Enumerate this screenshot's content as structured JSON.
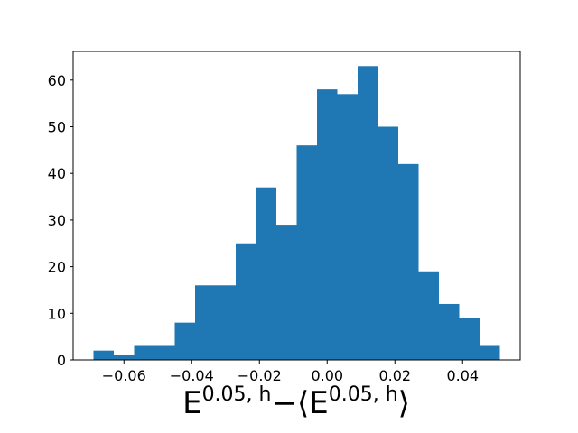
{
  "chart_data": {
    "type": "histogram",
    "xlabel": [
      "E",
      "0.05, h",
      "−⟨E",
      "0.05, h",
      "⟩"
    ],
    "bins": [
      -0.069,
      -0.063,
      -0.057,
      -0.051,
      -0.045,
      -0.039,
      -0.033,
      -0.027,
      -0.021,
      -0.015,
      -0.009,
      -0.003,
      0.003,
      0.009,
      0.015,
      0.021,
      0.027,
      0.033,
      0.039,
      0.045,
      0.051
    ],
    "values": [
      2,
      1,
      3,
      3,
      8,
      16,
      16,
      25,
      37,
      29,
      46,
      58,
      57,
      63,
      50,
      42,
      19,
      12,
      9,
      3
    ],
    "color": "#1f77b4",
    "xlim": [
      -0.075,
      0.057
    ],
    "ylim": [
      0,
      66.15
    ],
    "xticks": [
      {
        "value": -0.06,
        "label": "−0.06"
      },
      {
        "value": -0.04,
        "label": "−0.04"
      },
      {
        "value": -0.02,
        "label": "−0.02"
      },
      {
        "value": 0,
        "label": "0.00"
      },
      0.02,
      0.04
    ],
    "yticks": [
      0,
      10,
      20,
      30,
      40,
      50,
      60
    ]
  }
}
